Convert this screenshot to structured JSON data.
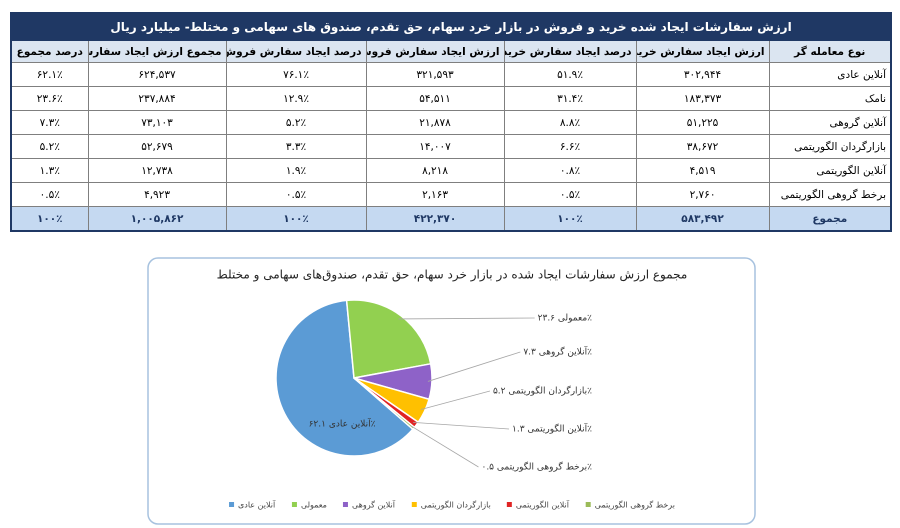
{
  "table": {
    "title": "ارزش سفارشات ایجاد شده خرید و فروش در بازار خرد سهام، حق تقدم، صندوق های سهامی و مختلط- میلیارد ریال",
    "header": [
      "نوع معامله گر",
      "ارزش ایجاد سفارش خرید",
      "درصد ایجاد سفارش خرید",
      "ارزش ایجاد سفارش فروش",
      "درصد ایجاد سفارش فروش",
      "مجموع ارزش ایجاد سفارش",
      "درصد مجموع"
    ],
    "rows": [
      [
        "آنلاین عادی",
        "۳۰۲,۹۴۴",
        "۵۱.۹٪",
        "۳۲۱,۵۹۳",
        "۷۶.۱٪",
        "۶۲۴,۵۳۷",
        "۶۲.۱٪"
      ],
      [
        "نامک",
        "۱۸۳,۳۷۳",
        "۳۱.۴٪",
        "۵۴,۵۱۱",
        "۱۲.۹٪",
        "۲۳۷,۸۸۴",
        "۲۳.۶٪"
      ],
      [
        "آنلاین گروهی",
        "۵۱,۲۲۵",
        "۸.۸٪",
        "۲۱,۸۷۸",
        "۵.۲٪",
        "۷۳,۱۰۳",
        "۷.۳٪"
      ],
      [
        "بازارگردان الگوریتمی",
        "۳۸,۶۷۲",
        "۶.۶٪",
        "۱۴,۰۰۷",
        "۳.۳٪",
        "۵۲,۶۷۹",
        "۵.۲٪"
      ],
      [
        "آنلاین الگوریتمی",
        "۴,۵۱۹",
        "۰.۸٪",
        "۸,۲۱۸",
        "۱.۹٪",
        "۱۲,۷۳۸",
        "۱.۳٪"
      ],
      [
        "برخط گروهی الگوریتمی",
        "۲,۷۶۰",
        "۰.۵٪",
        "۲,۱۶۳",
        "۰.۵٪",
        "۴,۹۲۳",
        "۰.۵٪"
      ]
    ],
    "total": [
      "مجموع",
      "۵۸۳,۴۹۲",
      "۱۰۰٪",
      "۴۲۲,۳۷۰",
      "۱۰۰٪",
      "۱,۰۰۵,۸۶۲",
      "۱۰۰٪"
    ]
  },
  "chart_data": {
    "type": "pie",
    "title": "مجموع ارزش سفارشات ایجاد شده در بازار خرد سهام، حق تقدم، صندوق‌های سهامی و مختلط",
    "categories": [
      "آنلاین عادی",
      "معمولی",
      "آنلاین گروهی",
      "بازارگردان الگوریتمی",
      "آنلاین الگوریتمی",
      "برخط گروهی الگوریتمی"
    ],
    "values": [
      62.1,
      23.6,
      7.3,
      5.2,
      1.3,
      0.5
    ],
    "value_labels": [
      "آنلاین عادی ۶۲.۱٪",
      "معمولی ۲۳.۶٪",
      "آنلاین گروهی ۷.۳٪",
      "بازارگردان الگوریتمی ۵.۲٪",
      "آنلاین الگوریتمی ۱.۳٪",
      "برخط گروهی الگوریتمی ۰.۵٪"
    ],
    "colors": [
      "#5b9bd5",
      "#92d050",
      "#8e62c8",
      "#ffc000",
      "#e02424",
      "#9bbb59"
    ],
    "legend": "bottom"
  }
}
